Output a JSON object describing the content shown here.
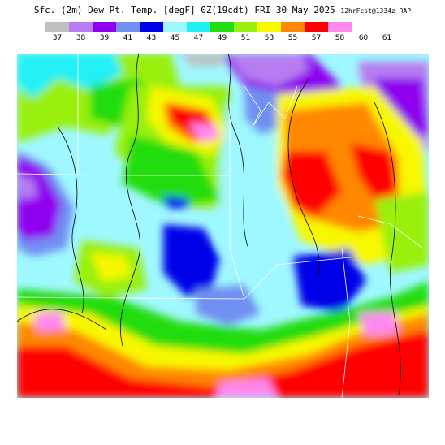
{
  "title": {
    "main": "Sfc. (2m) Dew Pt. Temp. [degF] 0Z(19cdt) FRI 30 May 2025",
    "run": "12hrFcst@1334z RAP"
  },
  "colorbar": {
    "labels": [
      "37",
      "38",
      "39",
      "41",
      "43",
      "45",
      "47",
      "49",
      "51",
      "53",
      "55",
      "57",
      "58",
      "60",
      "61"
    ],
    "colors": [
      "#bfbfbf",
      "#b77df0",
      "#8f00ef",
      "#6f8ff2",
      "#0000e8",
      "#9ff8ff",
      "#20f0f5",
      "#22dd11",
      "#99f00f",
      "#f7f800",
      "#ff8800",
      "#ff0000",
      "#ff88f0"
    ]
  },
  "map": {
    "variable": "2m dew point temperature",
    "units": "degF",
    "boundaries": [
      "state lines",
      "coastlines",
      "topography contours"
    ]
  }
}
